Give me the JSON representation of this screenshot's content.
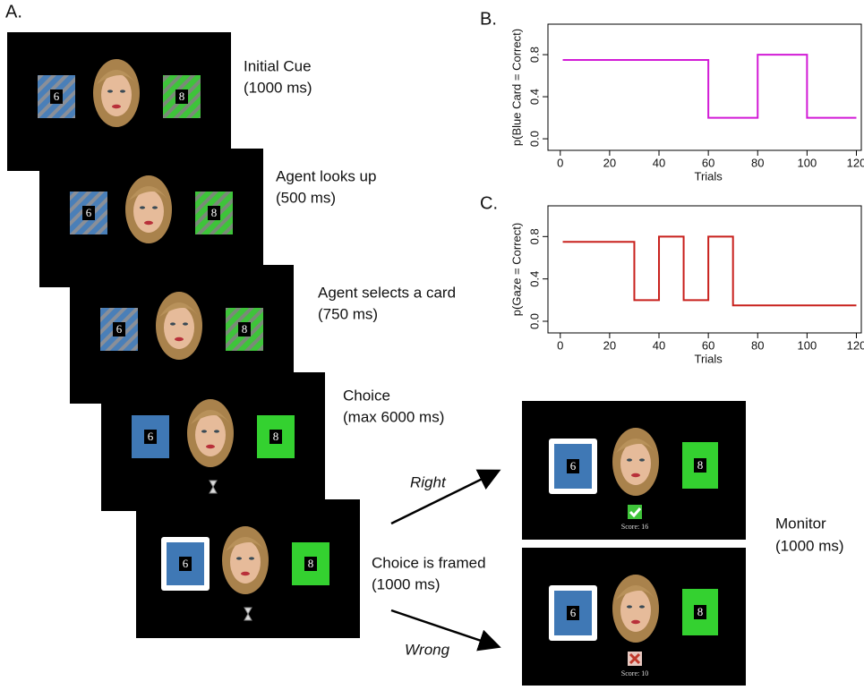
{
  "panel_a": {
    "label": "A.",
    "steps": [
      {
        "title": "Initial Cue",
        "duration": "(1000 ms)"
      },
      {
        "title": "Agent looks up",
        "duration": "(500 ms)"
      },
      {
        "title": "Agent selects a card",
        "duration": "(750 ms)"
      },
      {
        "title": "Choice",
        "duration": "(max 6000 ms)"
      },
      {
        "title": "Choice is framed",
        "duration": "(1000 ms)"
      }
    ],
    "cards": {
      "left": "6",
      "right": "8"
    },
    "outcomes": [
      {
        "arrow": "Right",
        "score": "Score: 16"
      },
      {
        "arrow": "Wrong",
        "score": "Score: 10"
      }
    ],
    "monitor": {
      "title": "Monitor",
      "duration": "(1000 ms)"
    }
  },
  "chart_data": [
    {
      "type": "line",
      "panel": "B.",
      "ylabel": "p(Blue Card = Correct)",
      "xlabel": "Trials",
      "color": "#d21bd6",
      "x": [
        1,
        60,
        60,
        80,
        80,
        100,
        100,
        120
      ],
      "values": [
        0.75,
        0.75,
        0.2,
        0.2,
        0.8,
        0.8,
        0.2,
        0.2
      ],
      "xlim": [
        -5,
        122
      ],
      "ylim": [
        -0.11,
        1.09
      ],
      "xticks": [
        0,
        20,
        40,
        60,
        80,
        100,
        120
      ],
      "yticks": [
        {
          "value": 0,
          "label": "0.0"
        },
        0.4,
        0.8
      ]
    },
    {
      "type": "line",
      "panel": "C.",
      "ylabel": "p(Gaze = Correct)",
      "xlabel": "Trials",
      "color": "#c8201c",
      "x": [
        1,
        30,
        30,
        40,
        40,
        50,
        50,
        60,
        60,
        70,
        70,
        120
      ],
      "values": [
        0.75,
        0.75,
        0.2,
        0.2,
        0.8,
        0.8,
        0.2,
        0.2,
        0.8,
        0.8,
        0.15,
        0.15
      ],
      "xlim": [
        -5,
        122
      ],
      "ylim": [
        -0.11,
        1.09
      ],
      "xticks": [
        0,
        20,
        40,
        60,
        80,
        100,
        120
      ],
      "yticks": [
        {
          "value": 0,
          "label": "0.0"
        },
        0.4,
        0.8
      ]
    }
  ]
}
